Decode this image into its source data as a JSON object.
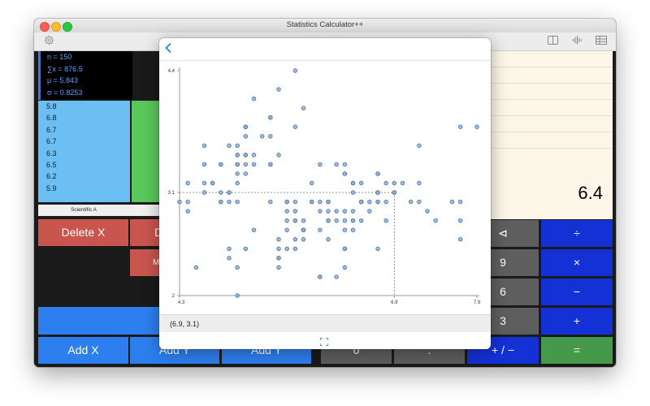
{
  "window": {
    "title": "Statistics Calculator++"
  },
  "stats": {
    "n": "n = 150",
    "sum": "∑x = 876.5",
    "mean": "μ = 5.843",
    "sd": "σ = 0.8253"
  },
  "xlist": [
    "5.8",
    "6.8",
    "6.7",
    "6.7",
    "6.3",
    "6.5",
    "6.2",
    "5.9"
  ],
  "tabs": {
    "active": "Scientific A"
  },
  "buttons": {
    "delete_x": "Delete X",
    "delete_trunc": "D",
    "mode_trunc": "M",
    "add_x": "Add X",
    "add_y_trunc": "Add Y",
    "add_y": "Add Y",
    "backspace": "⊲",
    "divide": "÷",
    "nine": "9",
    "multiply": "×",
    "six": "6",
    "minus": "−",
    "three": "3",
    "plus": "+",
    "zero": "0",
    "dot": ".",
    "plus_minus": "+ / −",
    "equals": "="
  },
  "display": {
    "value": "6.4"
  },
  "popover": {
    "coord_readout": "(6.9, 3.1)"
  },
  "colors": {
    "accent": "#2b7df6",
    "point_fill": "#8fb0d8",
    "point_stroke": "#4a6f9e",
    "red_button": "#c8554e",
    "blue_button": "#2d7ff0",
    "navy_button": "#1431d6",
    "gray_button": "#5e5e5e",
    "green_button": "#46994a"
  },
  "icons": {
    "settings": "gear-icon",
    "back": "chevron-left-icon",
    "split": "split-view-icon",
    "audio": "waveform-icon",
    "table": "table-icon",
    "expand": "expand-icon"
  },
  "chart_data": {
    "type": "scatter",
    "title": "",
    "xlabel": "",
    "ylabel": "",
    "xlim": [
      4.3,
      7.9
    ],
    "ylim": [
      2,
      4.4
    ],
    "x_ticks": [
      "4.3",
      "6.9",
      "7.9"
    ],
    "y_ticks": [
      "4.4",
      "3.1",
      "2"
    ],
    "crosshair": {
      "x": 6.9,
      "y": 3.1
    },
    "grid": false,
    "points": [
      [
        5.1,
        3.5
      ],
      [
        4.9,
        3.0
      ],
      [
        4.7,
        3.2
      ],
      [
        4.6,
        3.1
      ],
      [
        5.0,
        3.6
      ],
      [
        5.4,
        3.9
      ],
      [
        4.6,
        3.4
      ],
      [
        5.0,
        3.4
      ],
      [
        4.4,
        2.9
      ],
      [
        4.9,
        3.1
      ],
      [
        5.4,
        3.7
      ],
      [
        4.8,
        3.4
      ],
      [
        4.8,
        3.0
      ],
      [
        4.3,
        3.0
      ],
      [
        5.8,
        4.0
      ],
      [
        5.7,
        4.4
      ],
      [
        5.4,
        3.9
      ],
      [
        5.1,
        3.5
      ],
      [
        5.7,
        3.8
      ],
      [
        5.1,
        3.8
      ],
      [
        5.4,
        3.4
      ],
      [
        5.1,
        3.7
      ],
      [
        4.6,
        3.6
      ],
      [
        5.1,
        3.3
      ],
      [
        4.8,
        3.4
      ],
      [
        5.0,
        3.0
      ],
      [
        5.0,
        3.4
      ],
      [
        5.2,
        3.5
      ],
      [
        5.2,
        3.4
      ],
      [
        4.7,
        3.2
      ],
      [
        4.8,
        3.1
      ],
      [
        5.4,
        3.4
      ],
      [
        5.2,
        4.1
      ],
      [
        5.5,
        4.2
      ],
      [
        4.9,
        3.1
      ],
      [
        5.0,
        3.2
      ],
      [
        5.5,
        3.5
      ],
      [
        4.9,
        3.6
      ],
      [
        4.4,
        3.0
      ],
      [
        5.1,
        3.4
      ],
      [
        5.0,
        3.5
      ],
      [
        4.5,
        2.3
      ],
      [
        4.4,
        3.2
      ],
      [
        5.0,
        3.5
      ],
      [
        5.1,
        3.8
      ],
      [
        4.8,
        3.0
      ],
      [
        5.1,
        3.8
      ],
      [
        4.6,
        3.2
      ],
      [
        5.3,
        3.7
      ],
      [
        5.0,
        3.3
      ],
      [
        7.0,
        3.2
      ],
      [
        6.4,
        3.2
      ],
      [
        6.9,
        3.1
      ],
      [
        5.5,
        2.3
      ],
      [
        6.5,
        2.8
      ],
      [
        5.7,
        2.8
      ],
      [
        6.3,
        3.3
      ],
      [
        4.9,
        2.4
      ],
      [
        6.6,
        2.9
      ],
      [
        5.2,
        2.7
      ],
      [
        5.0,
        2.0
      ],
      [
        5.9,
        3.0
      ],
      [
        6.0,
        2.2
      ],
      [
        6.1,
        2.9
      ],
      [
        5.6,
        2.9
      ],
      [
        6.7,
        3.1
      ],
      [
        5.6,
        3.0
      ],
      [
        5.8,
        2.7
      ],
      [
        6.2,
        2.2
      ],
      [
        5.6,
        2.5
      ],
      [
        5.9,
        3.2
      ],
      [
        6.1,
        2.8
      ],
      [
        6.3,
        2.5
      ],
      [
        6.1,
        2.8
      ],
      [
        6.4,
        2.9
      ],
      [
        6.6,
        3.0
      ],
      [
        6.8,
        2.8
      ],
      [
        6.7,
        3.0
      ],
      [
        6.0,
        2.9
      ],
      [
        5.7,
        2.6
      ],
      [
        5.5,
        2.4
      ],
      [
        5.5,
        2.4
      ],
      [
        5.8,
        2.7
      ],
      [
        6.0,
        2.7
      ],
      [
        5.4,
        3.0
      ],
      [
        6.0,
        3.4
      ],
      [
        6.7,
        3.1
      ],
      [
        6.3,
        2.3
      ],
      [
        5.6,
        3.0
      ],
      [
        5.5,
        2.5
      ],
      [
        5.5,
        2.6
      ],
      [
        6.1,
        3.0
      ],
      [
        5.8,
        2.6
      ],
      [
        5.0,
        2.3
      ],
      [
        5.6,
        2.7
      ],
      [
        5.7,
        3.0
      ],
      [
        5.7,
        2.9
      ],
      [
        6.2,
        2.9
      ],
      [
        5.1,
        2.5
      ],
      [
        5.7,
        2.8
      ],
      [
        6.3,
        3.3
      ],
      [
        5.8,
        2.7
      ],
      [
        7.1,
        3.0
      ],
      [
        6.3,
        2.9
      ],
      [
        6.5,
        3.0
      ],
      [
        7.6,
        3.0
      ],
      [
        4.9,
        2.5
      ],
      [
        7.3,
        2.9
      ],
      [
        6.7,
        2.5
      ],
      [
        7.2,
        3.6
      ],
      [
        6.5,
        3.2
      ],
      [
        6.4,
        2.7
      ],
      [
        6.8,
        3.0
      ],
      [
        5.7,
        2.5
      ],
      [
        5.8,
        2.8
      ],
      [
        6.4,
        3.2
      ],
      [
        6.5,
        3.0
      ],
      [
        7.7,
        3.8
      ],
      [
        7.7,
        2.6
      ],
      [
        6.0,
        2.2
      ],
      [
        6.9,
        3.2
      ],
      [
        5.6,
        2.8
      ],
      [
        7.7,
        2.8
      ],
      [
        6.3,
        2.7
      ],
      [
        6.7,
        3.3
      ],
      [
        7.2,
        3.2
      ],
      [
        6.2,
        2.8
      ],
      [
        6.1,
        3.0
      ],
      [
        6.4,
        2.8
      ],
      [
        7.2,
        3.0
      ],
      [
        7.4,
        2.8
      ],
      [
        7.9,
        3.8
      ],
      [
        6.4,
        2.8
      ],
      [
        6.3,
        2.8
      ],
      [
        6.1,
        2.6
      ],
      [
        7.7,
        3.0
      ],
      [
        6.3,
        3.4
      ],
      [
        6.4,
        3.1
      ],
      [
        6.0,
        3.0
      ],
      [
        6.9,
        3.1
      ],
      [
        6.7,
        3.1
      ],
      [
        6.9,
        3.1
      ],
      [
        5.8,
        2.7
      ],
      [
        6.8,
        3.2
      ],
      [
        6.7,
        3.3
      ],
      [
        6.7,
        3.0
      ],
      [
        6.3,
        2.5
      ],
      [
        6.5,
        3.0
      ],
      [
        6.2,
        3.4
      ],
      [
        5.9,
        3.0
      ]
    ]
  }
}
